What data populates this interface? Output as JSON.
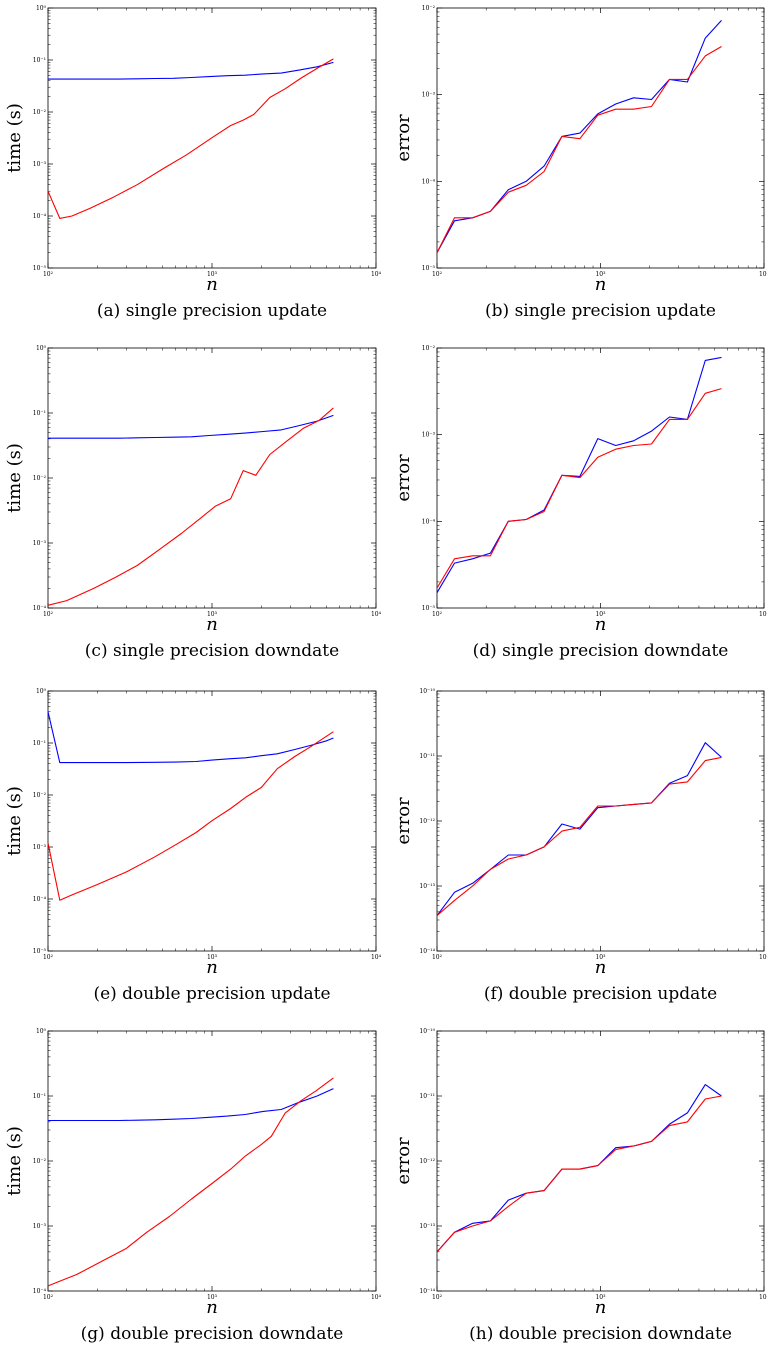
{
  "chart_data": [
    {
      "type": "line",
      "panel": "(a)",
      "caption": "(a) single precision update",
      "xlabel": "n",
      "ylabel": "time (s)",
      "xscale": "log",
      "yscale": "log",
      "xlim": [
        100,
        10000
      ],
      "ylim": [
        1e-05,
        1
      ],
      "xticks": [
        100,
        1000,
        10000
      ],
      "xtick_labels": [
        "10²",
        "10³",
        "10⁴"
      ],
      "yticks": [
        1e-05,
        0.0001,
        0.001,
        0.01,
        0.1,
        1
      ],
      "ytick_labels": [
        "10⁻⁵",
        "10⁻⁴",
        "10⁻³",
        "10⁻²",
        "10⁻¹",
        "10⁰"
      ],
      "grid": false,
      "series": [
        {
          "color": "#0000ff",
          "x": [
            100,
            128,
            165,
            212,
            273,
            351,
            452,
            581,
            748,
            963,
            1239,
            1594,
            2052,
            2641,
            3399,
            4375,
            5500
          ],
          "y": [
            0.043,
            0.043,
            0.043,
            0.043,
            0.043,
            0.0435,
            0.044,
            0.0445,
            0.046,
            0.048,
            0.05,
            0.051,
            0.054,
            0.056,
            0.064,
            0.074,
            0.09
          ]
        },
        {
          "color": "#ff0000",
          "x": [
            100,
            118,
            140,
            180,
            250,
            350,
            500,
            700,
            1000,
            1300,
            1550,
            1800,
            2250,
            2800,
            3500,
            4400,
            5500
          ],
          "y": [
            0.0003,
            9e-05,
            0.0001,
            0.00014,
            0.00023,
            0.0004,
            0.0008,
            0.0015,
            0.0032,
            0.0055,
            0.007,
            0.009,
            0.019,
            0.028,
            0.045,
            0.07,
            0.105
          ]
        }
      ]
    },
    {
      "type": "line",
      "panel": "(b)",
      "caption": "(b) single precision update",
      "xlabel": "n",
      "ylabel": "error",
      "xscale": "log",
      "yscale": "log",
      "xlim": [
        100,
        10000
      ],
      "ylim": [
        1e-05,
        0.01
      ],
      "xticks": [
        100,
        1000,
        10000
      ],
      "xtick_labels": [
        "10²",
        "10³",
        "10⁴"
      ],
      "yticks": [
        1e-05,
        0.0001,
        0.001,
        0.01
      ],
      "ytick_labels": [
        "10⁻⁵",
        "10⁻⁴",
        "10⁻³",
        "10⁻²"
      ],
      "grid": false,
      "series": [
        {
          "color": "#0000ff",
          "x": [
            100,
            128,
            165,
            212,
            273,
            351,
            452,
            581,
            748,
            963,
            1239,
            1594,
            2052,
            2641,
            3399,
            4375,
            5500
          ],
          "y": [
            1.5e-05,
            3.5e-05,
            3.8e-05,
            4.5e-05,
            8e-05,
            0.0001,
            0.00015,
            0.00033,
            0.00036,
            0.0006,
            0.00078,
            0.00092,
            0.00088,
            0.0015,
            0.0014,
            0.0045,
            0.0072
          ]
        },
        {
          "color": "#ff0000",
          "x": [
            100,
            128,
            165,
            212,
            273,
            351,
            452,
            581,
            748,
            963,
            1239,
            1594,
            2052,
            2641,
            3399,
            4375,
            5500
          ],
          "y": [
            1.5e-05,
            3.8e-05,
            3.8e-05,
            4.5e-05,
            7.5e-05,
            9e-05,
            0.00013,
            0.00033,
            0.00031,
            0.00058,
            0.00068,
            0.00068,
            0.00073,
            0.0015,
            0.0015,
            0.0028,
            0.0036
          ]
        }
      ]
    },
    {
      "type": "line",
      "panel": "(c)",
      "caption": "(c) single precision downdate",
      "xlabel": "n",
      "ylabel": "time (s)",
      "xscale": "log",
      "yscale": "log",
      "xlim": [
        100,
        10000
      ],
      "ylim": [
        0.0001,
        1
      ],
      "xticks": [
        100,
        1000,
        10000
      ],
      "xtick_labels": [
        "10²",
        "10³",
        "10⁴"
      ],
      "yticks": [
        0.0001,
        0.001,
        0.01,
        0.1,
        1
      ],
      "ytick_labels": [
        "10⁻⁴",
        "10⁻³",
        "10⁻²",
        "10⁻¹",
        "10⁰"
      ],
      "grid": false,
      "series": [
        {
          "color": "#0000ff",
          "x": [
            100,
            128,
            165,
            212,
            273,
            351,
            452,
            581,
            748,
            963,
            1239,
            1594,
            2052,
            2641,
            3399,
            4375,
            5500
          ],
          "y": [
            0.041,
            0.041,
            0.041,
            0.041,
            0.041,
            0.0415,
            0.042,
            0.0425,
            0.043,
            0.045,
            0.047,
            0.049,
            0.052,
            0.055,
            0.064,
            0.075,
            0.092
          ]
        },
        {
          "color": "#ff0000",
          "x": [
            100,
            130,
            190,
            260,
            350,
            480,
            650,
            850,
            1050,
            1300,
            1550,
            1850,
            2250,
            2900,
            3600,
            4500,
            5500
          ],
          "y": [
            0.00011,
            0.00013,
            0.0002,
            0.0003,
            0.00045,
            0.0008,
            0.0014,
            0.0024,
            0.0037,
            0.0048,
            0.013,
            0.011,
            0.023,
            0.038,
            0.058,
            0.077,
            0.12
          ]
        }
      ]
    },
    {
      "type": "line",
      "panel": "(d)",
      "caption": "(d) single precision downdate",
      "xlabel": "n",
      "ylabel": "error",
      "xscale": "log",
      "yscale": "log",
      "xlim": [
        100,
        10000
      ],
      "ylim": [
        1e-05,
        0.01
      ],
      "xticks": [
        100,
        1000,
        10000
      ],
      "xtick_labels": [
        "10²",
        "10³",
        "10⁴"
      ],
      "yticks": [
        1e-05,
        0.0001,
        0.001,
        0.01
      ],
      "ytick_labels": [
        "10⁻⁵",
        "10⁻⁴",
        "10⁻³",
        "10⁻²"
      ],
      "grid": false,
      "series": [
        {
          "color": "#0000ff",
          "x": [
            100,
            128,
            165,
            212,
            273,
            351,
            452,
            581,
            748,
            963,
            1239,
            1594,
            2052,
            2641,
            3399,
            4375,
            5500
          ],
          "y": [
            1.5e-05,
            3.3e-05,
            3.7e-05,
            4.3e-05,
            0.0001,
            0.000105,
            0.000135,
            0.00034,
            0.00033,
            0.0009,
            0.00075,
            0.00085,
            0.0011,
            0.0016,
            0.0015,
            0.0072,
            0.0078
          ]
        },
        {
          "color": "#ff0000",
          "x": [
            100,
            128,
            165,
            212,
            273,
            351,
            452,
            581,
            748,
            963,
            1239,
            1594,
            2052,
            2641,
            3399,
            4375,
            5500
          ],
          "y": [
            1.7e-05,
            3.7e-05,
            4e-05,
            4e-05,
            0.0001,
            0.000105,
            0.00013,
            0.00034,
            0.00032,
            0.00055,
            0.00068,
            0.00075,
            0.00078,
            0.0015,
            0.0015,
            0.003,
            0.0034
          ]
        }
      ]
    },
    {
      "type": "line",
      "panel": "(e)",
      "caption": "(e) double precision update",
      "xlabel": "n",
      "ylabel": "time (s)",
      "xscale": "log",
      "yscale": "log",
      "xlim": [
        100,
        10000
      ],
      "ylim": [
        1e-05,
        1
      ],
      "xticks": [
        100,
        1000,
        10000
      ],
      "xtick_labels": [
        "10²",
        "10³",
        "10⁴"
      ],
      "yticks": [
        1e-05,
        0.0001,
        0.001,
        0.01,
        0.1,
        1
      ],
      "ytick_labels": [
        "10⁻⁵",
        "10⁻⁴",
        "10⁻³",
        "10⁻²",
        "10⁻¹",
        "10⁰"
      ],
      "grid": false,
      "series": [
        {
          "color": "#0000ff",
          "x": [
            100,
            118,
            140,
            200,
            300,
            450,
            600,
            800,
            1000,
            1300,
            1600,
            2000,
            2500,
            3200,
            4000,
            5000,
            5500
          ],
          "y": [
            0.4,
            0.042,
            0.042,
            0.042,
            0.042,
            0.0425,
            0.043,
            0.044,
            0.047,
            0.05,
            0.052,
            0.057,
            0.062,
            0.075,
            0.09,
            0.11,
            0.125
          ]
        },
        {
          "color": "#ff0000",
          "x": [
            100,
            118,
            140,
            200,
            300,
            450,
            600,
            800,
            1000,
            1300,
            1600,
            2000,
            2500,
            3200,
            4000,
            5000,
            5500
          ],
          "y": [
            0.0012,
            9.5e-05,
            0.00012,
            0.00019,
            0.00033,
            0.00065,
            0.0011,
            0.0019,
            0.0032,
            0.0055,
            0.009,
            0.014,
            0.032,
            0.055,
            0.085,
            0.135,
            0.165
          ]
        }
      ]
    },
    {
      "type": "line",
      "panel": "(f)",
      "caption": "(f) double precision update",
      "xlabel": "n",
      "ylabel": "error",
      "xscale": "log",
      "yscale": "log",
      "xlim": [
        100,
        10000
      ],
      "ylim": [
        1e-14,
        1e-10
      ],
      "xticks": [
        100,
        1000,
        10000
      ],
      "xtick_labels": [
        "10²",
        "10³",
        "10⁴"
      ],
      "yticks": [
        1e-14,
        1e-13,
        1e-12,
        1e-11,
        1e-10
      ],
      "ytick_labels": [
        "10⁻¹⁴",
        "10⁻¹³",
        "10⁻¹²",
        "10⁻¹¹",
        "10⁻¹⁰"
      ],
      "grid": false,
      "series": [
        {
          "color": "#0000ff",
          "x": [
            100,
            128,
            165,
            212,
            273,
            351,
            452,
            581,
            748,
            963,
            1239,
            1594,
            2052,
            2641,
            3399,
            4375,
            5500
          ],
          "y": [
            3.5e-14,
            8e-14,
            1.1e-13,
            1.8e-13,
            3e-13,
            3e-13,
            4e-13,
            9e-13,
            7.5e-13,
            1.6e-12,
            1.7e-12,
            1.8e-12,
            1.9e-12,
            3.8e-12,
            5e-12,
            1.6e-11,
            9.5e-12
          ]
        },
        {
          "color": "#ff0000",
          "x": [
            100,
            128,
            165,
            212,
            273,
            351,
            452,
            581,
            748,
            963,
            1239,
            1594,
            2052,
            2641,
            3399,
            4375,
            5500
          ],
          "y": [
            3.5e-14,
            6e-14,
            1e-13,
            1.8e-13,
            2.6e-13,
            3e-13,
            4e-13,
            7e-13,
            8e-13,
            1.7e-12,
            1.7e-12,
            1.8e-12,
            1.9e-12,
            3.7e-12,
            4e-12,
            8.5e-12,
            9.5e-12
          ]
        }
      ]
    },
    {
      "type": "line",
      "panel": "(g)",
      "caption": "(g) double precision downdate",
      "xlabel": "n",
      "ylabel": "time (s)",
      "xscale": "log",
      "yscale": "log",
      "xlim": [
        100,
        10000
      ],
      "ylim": [
        0.0001,
        1
      ],
      "xticks": [
        100,
        1000,
        10000
      ],
      "xtick_labels": [
        "10²",
        "10³",
        "10⁴"
      ],
      "yticks": [
        0.0001,
        0.001,
        0.01,
        0.1,
        1
      ],
      "ytick_labels": [
        "10⁻⁴",
        "10⁻³",
        "10⁻²",
        "10⁻¹",
        "10⁰"
      ],
      "grid": false,
      "series": [
        {
          "color": "#0000ff",
          "x": [
            100,
            128,
            165,
            212,
            273,
            351,
            452,
            581,
            748,
            963,
            1239,
            1594,
            2052,
            2641,
            3399,
            4375,
            5500
          ],
          "y": [
            0.042,
            0.042,
            0.042,
            0.042,
            0.042,
            0.0425,
            0.043,
            0.044,
            0.045,
            0.047,
            0.049,
            0.052,
            0.058,
            0.062,
            0.08,
            0.1,
            0.13
          ]
        },
        {
          "color": "#ff0000",
          "x": [
            100,
            150,
            220,
            300,
            400,
            550,
            750,
            1000,
            1300,
            1600,
            2000,
            2300,
            2800,
            3500,
            4300,
            5500
          ],
          "y": [
            0.00012,
            0.00018,
            0.0003,
            0.00045,
            0.0008,
            0.0014,
            0.0026,
            0.0045,
            0.0075,
            0.012,
            0.018,
            0.024,
            0.055,
            0.085,
            0.12,
            0.19
          ]
        }
      ]
    },
    {
      "type": "line",
      "panel": "(h)",
      "caption": "(h) double precision downdate",
      "xlabel": "n",
      "ylabel": "error",
      "xscale": "log",
      "yscale": "log",
      "xlim": [
        100,
        10000
      ],
      "ylim": [
        1e-14,
        1e-10
      ],
      "xticks": [
        100,
        1000,
        10000
      ],
      "xtick_labels": [
        "10²",
        "10³",
        "10⁴"
      ],
      "yticks": [
        1e-14,
        1e-13,
        1e-12,
        1e-11,
        1e-10
      ],
      "ytick_labels": [
        "10⁻¹⁴",
        "10⁻¹³",
        "10⁻¹²",
        "10⁻¹¹",
        "10⁻¹⁰"
      ],
      "grid": false,
      "series": [
        {
          "color": "#0000ff",
          "x": [
            100,
            128,
            165,
            212,
            273,
            351,
            452,
            581,
            748,
            963,
            1239,
            1594,
            2052,
            2641,
            3399,
            4375,
            5500
          ],
          "y": [
            4e-14,
            8e-14,
            1.1e-13,
            1.2e-13,
            2.5e-13,
            3.2e-13,
            3.5e-13,
            7.5e-13,
            7.5e-13,
            8.5e-13,
            1.6e-12,
            1.7e-12,
            2e-12,
            3.7e-12,
            5.5e-12,
            1.5e-11,
            1e-11
          ]
        },
        {
          "color": "#ff0000",
          "x": [
            100,
            128,
            165,
            212,
            273,
            351,
            452,
            581,
            748,
            963,
            1239,
            1594,
            2052,
            2641,
            3399,
            4375,
            5500
          ],
          "y": [
            4e-14,
            8e-14,
            1e-13,
            1.2e-13,
            2e-13,
            3.2e-13,
            3.5e-13,
            7.5e-13,
            7.5e-13,
            8.5e-13,
            1.5e-12,
            1.7e-12,
            2e-12,
            3.5e-12,
            4e-12,
            9e-12,
            1e-11
          ]
        }
      ]
    }
  ]
}
